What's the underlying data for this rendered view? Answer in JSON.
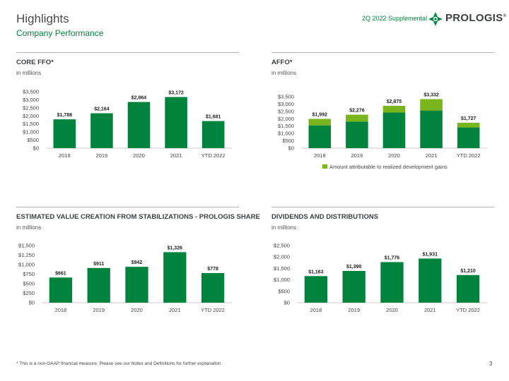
{
  "header": {
    "title": "Highlights",
    "subtitle": "Company Performance",
    "supplemental": "2Q 2022 Supplemental",
    "logo_text": "PROLOGIS",
    "logo_registered": "®"
  },
  "colors": {
    "primary": "#00843d",
    "light": "#7ab51d",
    "rule": "#b0b0b0"
  },
  "footnote": "* This is a non-GAAP financial measure. Please see our Notes and Definitions for further explanation.",
  "page_number": "3",
  "chart_data": [
    {
      "id": "core-ffo",
      "type": "bar",
      "title": "CORE FFO*",
      "unit_label": "in millions",
      "categories": [
        "2018",
        "2019",
        "2020",
        "2021",
        "YTD 2022"
      ],
      "values": [
        1788,
        2164,
        2864,
        3172,
        1681
      ],
      "data_labels": [
        "$1,788",
        "$2,164",
        "$2,864",
        "$3,172",
        "$1,681"
      ],
      "yticks": [
        "$0",
        "$500",
        "$1,000",
        "$1,500",
        "$2,000",
        "$2,500",
        "$3,000",
        "$3,500"
      ],
      "ylim": [
        0,
        3500
      ]
    },
    {
      "id": "affo",
      "type": "bar",
      "stacked": true,
      "title": "AFFO*",
      "unit_label": "in millions",
      "categories": [
        "2018",
        "2019",
        "2020",
        "2021",
        "YTD 2022"
      ],
      "series": [
        {
          "values": [
            1550,
            1810,
            2420,
            2560,
            1410
          ]
        },
        {
          "name": "Amount attributable to realized development gains",
          "values": [
            442,
            466,
            455,
            772,
            317
          ]
        }
      ],
      "totals": [
        1992,
        2276,
        2875,
        3332,
        1727
      ],
      "data_labels": [
        "$1,992",
        "$2,276",
        "$2,875",
        "$3,332",
        "$1,727"
      ],
      "yticks": [
        "$0",
        "$500",
        "$1,000",
        "$1,500",
        "$2,000",
        "$2,500",
        "$3,000",
        "$3,500"
      ],
      "ylim": [
        0,
        3500
      ],
      "legend": "bottom"
    },
    {
      "id": "value-creation",
      "type": "bar",
      "title": "ESTIMATED VALUE CREATION FROM STABILIZATIONS - PROLOGIS SHARE",
      "unit_label": "in millions",
      "categories": [
        "2018",
        "2019",
        "2020",
        "2021",
        "YTD 2022"
      ],
      "values": [
        661,
        911,
        942,
        1326,
        778
      ],
      "data_labels": [
        "$661",
        "$911",
        "$942",
        "$1,326",
        "$778"
      ],
      "yticks": [
        "$0",
        "$250",
        "$500",
        "$750",
        "$1,000",
        "$1,250",
        "$1,500"
      ],
      "ylim": [
        0,
        1500
      ]
    },
    {
      "id": "dividends",
      "type": "bar",
      "title": "DIVIDENDS AND DISTRIBUTIONS",
      "unit_label": "in millions",
      "categories": [
        "2018",
        "2019",
        "2020",
        "2021",
        "YTD 2022"
      ],
      "values": [
        1163,
        1390,
        1776,
        1931,
        1210
      ],
      "data_labels": [
        "$1,163",
        "$1,390",
        "$1,776",
        "$1,931",
        "$1,210"
      ],
      "yticks": [
        "$0",
        "$500",
        "$1,000",
        "$1,500",
        "$2,000",
        "$2,500"
      ],
      "ylim": [
        0,
        2500
      ]
    }
  ]
}
